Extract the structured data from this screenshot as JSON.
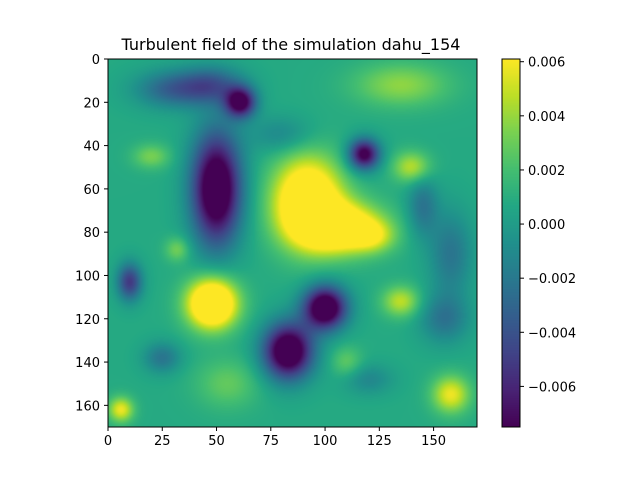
{
  "chart_data": {
    "type": "heatmap",
    "title": "Turbulent field of the simulation dahu_154",
    "xlabel": "",
    "ylabel": "",
    "xlim": [
      0,
      170
    ],
    "ylim": [
      170,
      0
    ],
    "x_ticks": [
      0,
      25,
      50,
      75,
      100,
      125,
      150
    ],
    "y_ticks": [
      0,
      20,
      40,
      60,
      80,
      100,
      120,
      140,
      160
    ],
    "colormap": "viridis",
    "colorbar": {
      "vmin": -0.0075,
      "vmax": 0.0061,
      "ticks": [
        0.006,
        0.004,
        0.002,
        0.0,
        -0.002,
        -0.004,
        -0.006
      ],
      "tick_labels": [
        "0.006",
        "0.004",
        "0.002",
        "0.000",
        "−0.002",
        "−0.004",
        "−0.006"
      ]
    },
    "background_level": 0.0008,
    "features": [
      {
        "x": 50,
        "y": 60,
        "sx": 8,
        "sy": 18,
        "amp": -0.011
      },
      {
        "x": 61,
        "y": 20,
        "sx": 5,
        "sy": 5,
        "amp": -0.009
      },
      {
        "x": 48,
        "y": 12,
        "sx": 10,
        "sy": 6,
        "amp": -0.004
      },
      {
        "x": 30,
        "y": 14,
        "sx": 12,
        "sy": 6,
        "amp": -0.004
      },
      {
        "x": 118,
        "y": 44,
        "sx": 5,
        "sy": 5,
        "amp": -0.009
      },
      {
        "x": 92,
        "y": 66,
        "sx": 11,
        "sy": 14,
        "amp": 0.0095
      },
      {
        "x": 108,
        "y": 78,
        "sx": 13,
        "sy": 8,
        "amp": 0.008
      },
      {
        "x": 122,
        "y": 82,
        "sx": 7,
        "sy": 5,
        "amp": 0.003
      },
      {
        "x": 48,
        "y": 113,
        "sx": 8,
        "sy": 8,
        "amp": 0.0105
      },
      {
        "x": 100,
        "y": 115,
        "sx": 7,
        "sy": 7,
        "amp": -0.011
      },
      {
        "x": 83,
        "y": 135,
        "sx": 8,
        "sy": 9,
        "amp": -0.011
      },
      {
        "x": 135,
        "y": 12,
        "sx": 15,
        "sy": 7,
        "amp": 0.003
      },
      {
        "x": 140,
        "y": 50,
        "sx": 6,
        "sy": 5,
        "amp": 0.004
      },
      {
        "x": 20,
        "y": 45,
        "sx": 6,
        "sy": 4,
        "amp": 0.0025
      },
      {
        "x": 32,
        "y": 88,
        "sx": 4,
        "sy": 4,
        "amp": 0.0025
      },
      {
        "x": 135,
        "y": 112,
        "sx": 6,
        "sy": 5,
        "amp": 0.004
      },
      {
        "x": 158,
        "y": 155,
        "sx": 6,
        "sy": 6,
        "amp": 0.005
      },
      {
        "x": 6,
        "y": 162,
        "sx": 4,
        "sy": 4,
        "amp": 0.005
      },
      {
        "x": 10,
        "y": 103,
        "sx": 4,
        "sy": 6,
        "amp": -0.006
      },
      {
        "x": 158,
        "y": 90,
        "sx": 7,
        "sy": 14,
        "amp": -0.003
      },
      {
        "x": 155,
        "y": 120,
        "sx": 8,
        "sy": 8,
        "amp": -0.003
      },
      {
        "x": 25,
        "y": 138,
        "sx": 6,
        "sy": 5,
        "amp": -0.003
      },
      {
        "x": 145,
        "y": 68,
        "sx": 5,
        "sy": 10,
        "amp": -0.003
      },
      {
        "x": 80,
        "y": 35,
        "sx": 10,
        "sy": 6,
        "amp": -0.002
      },
      {
        "x": 120,
        "y": 148,
        "sx": 8,
        "sy": 5,
        "amp": -0.002
      },
      {
        "x": 55,
        "y": 150,
        "sx": 10,
        "sy": 8,
        "amp": 0.002
      },
      {
        "x": 110,
        "y": 140,
        "sx": 5,
        "sy": 5,
        "amp": 0.002
      }
    ]
  }
}
